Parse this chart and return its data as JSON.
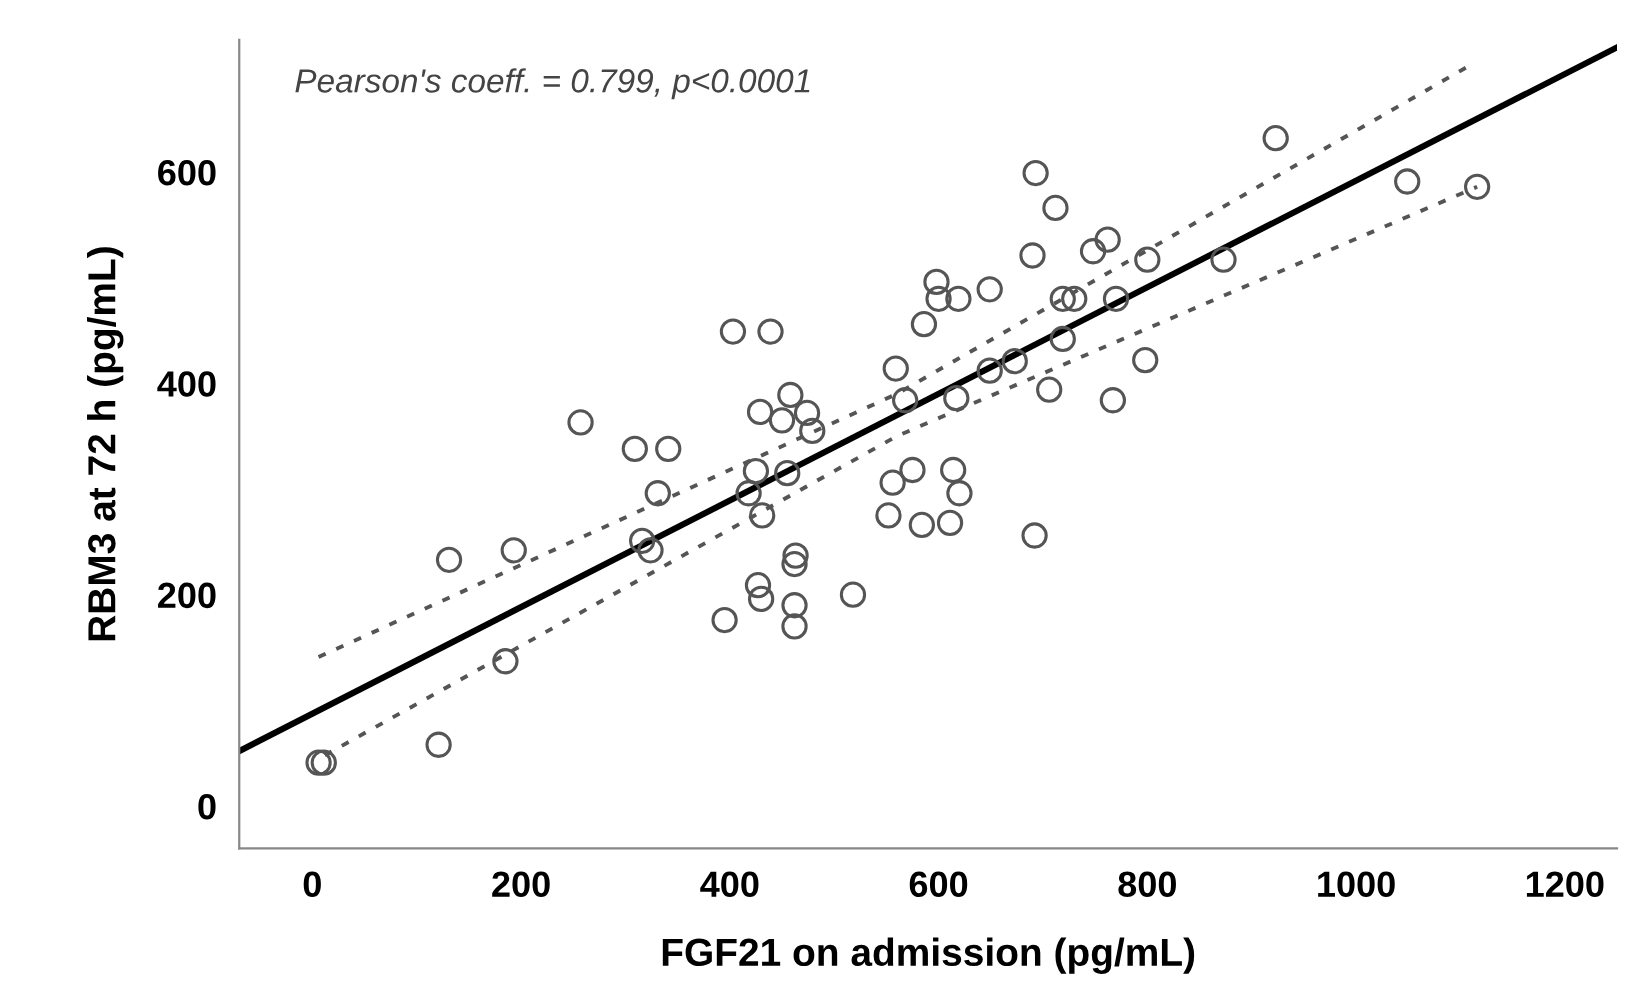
{
  "chart_data": {
    "type": "scatter",
    "xlabel": "FGF21 on admission (pg/mL)",
    "ylabel": "RBM3 at 72 h (pg/mL)",
    "annotations": [
      "Pearson's coeff. = 0.799, p<0.0001"
    ],
    "xlim": [
      -70,
      1250
    ],
    "ylim": [
      -40,
      725
    ],
    "xticks": [
      0,
      200,
      400,
      600,
      800,
      1000,
      1200
    ],
    "yticks": [
      0,
      200,
      400,
      600
    ],
    "grid": false,
    "legend": false,
    "series": [
      {
        "marker": "circle",
        "color": "#555555",
        "x": [
          6,
          11,
          121,
          185,
          131,
          193,
          257,
          309,
          341,
          331,
          316,
          324,
          403,
          439,
          395,
          427,
          430,
          462,
          462,
          518,
          463,
          462,
          431,
          418,
          425,
          455,
          429,
          450,
          458,
          474,
          479,
          559,
          568,
          617,
          556,
          575,
          552,
          584,
          611,
          614,
          620,
          586,
          598,
          600,
          619,
          649,
          649,
          673,
          693,
          712,
          690,
          719,
          730,
          719,
          706,
          692,
          748,
          762,
          800,
          770,
          798,
          767,
          873,
          923,
          1049,
          1116
        ],
        "values": [
          41,
          41,
          58,
          137,
          233,
          242,
          363,
          338,
          338,
          296,
          251,
          242,
          449,
          449,
          176,
          209,
          196,
          190,
          170,
          200,
          237,
          229,
          275,
          296,
          317,
          315,
          373,
          365,
          389,
          372,
          355,
          414,
          384,
          386,
          306,
          318,
          275,
          266,
          268,
          318,
          296,
          456,
          496,
          480,
          480,
          489,
          412,
          421,
          599,
          566,
          521,
          480,
          480,
          442,
          394,
          256,
          525,
          536,
          517,
          480,
          422,
          384,
          517,
          632,
          591,
          586
        ]
      },
      {
        "type": "line",
        "line_style": "solid",
        "color": "#000000",
        "x": [
          -70,
          1250
        ],
        "values": [
          52,
          718
        ]
      },
      {
        "type": "line",
        "line_style": "dotted",
        "color": "#555555",
        "x": [
          6,
          560,
          1111
        ],
        "values": [
          141,
          390,
          702
        ]
      },
      {
        "type": "line",
        "line_style": "dotted",
        "color": "#555555",
        "x": [
          12,
          560,
          1116
        ],
        "values": [
          48,
          350,
          586
        ]
      }
    ]
  }
}
